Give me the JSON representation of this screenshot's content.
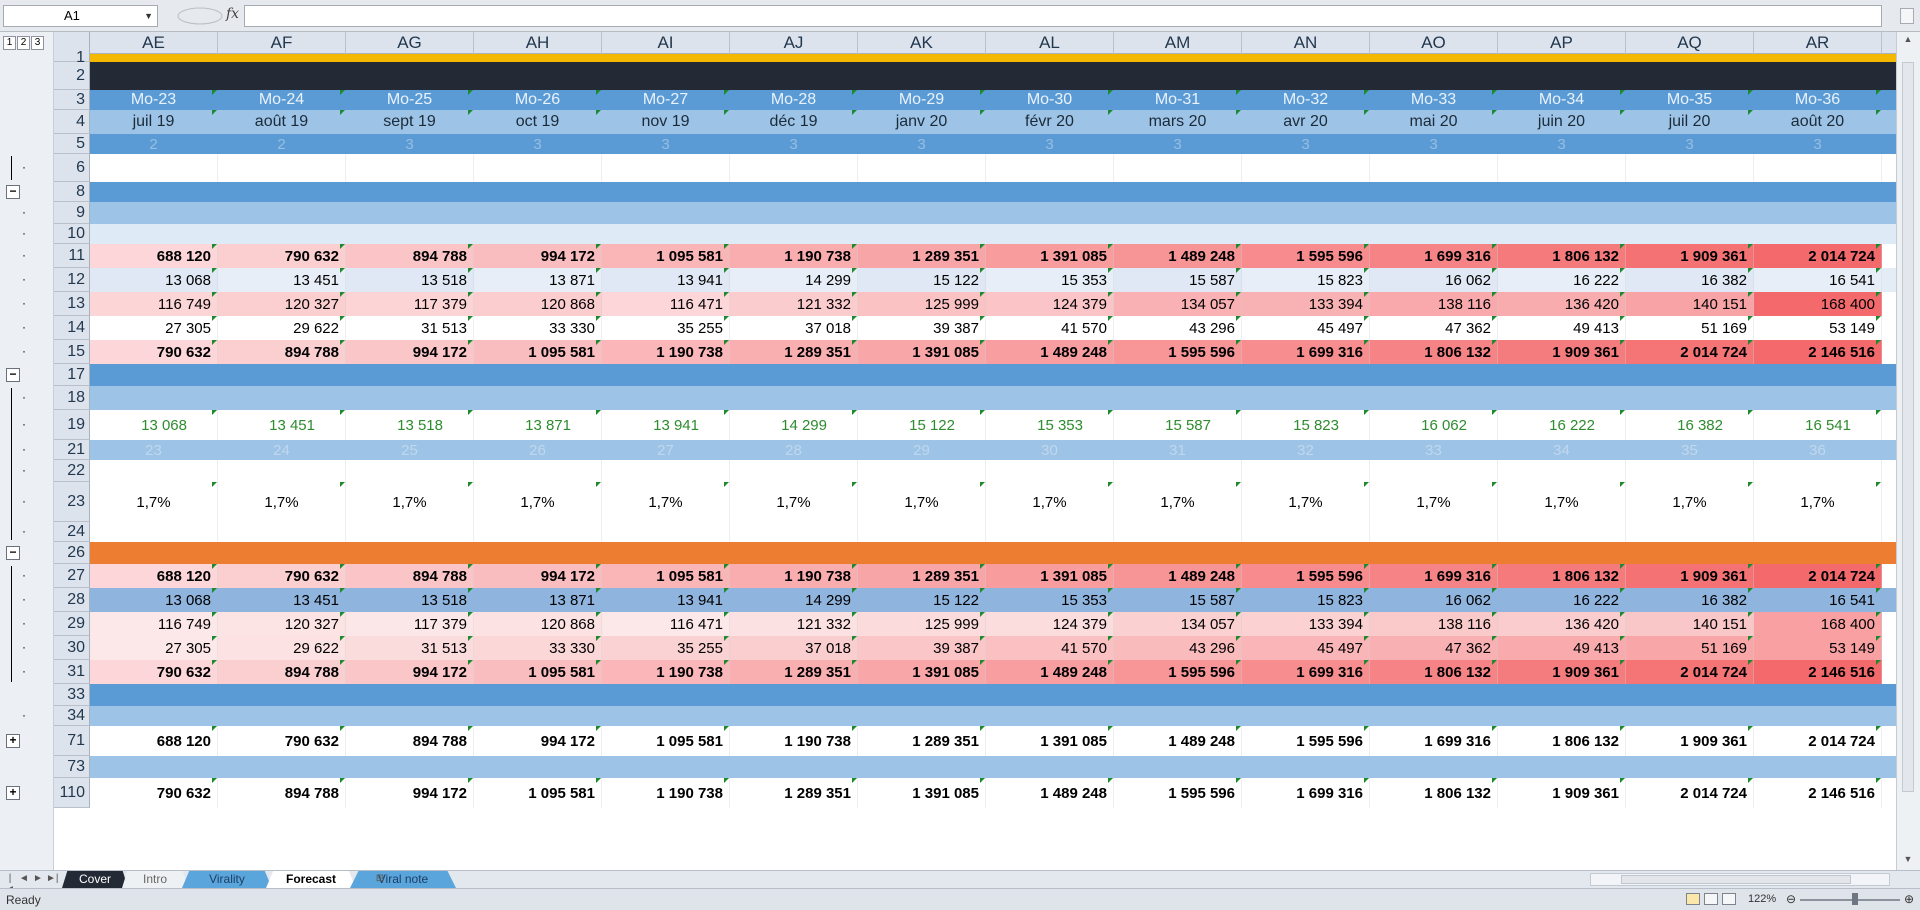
{
  "formula_bar": {
    "name_box": "A1",
    "formula": ""
  },
  "outline_levels": [
    "1",
    "2",
    "3"
  ],
  "columns": [
    "AE",
    "AF",
    "AG",
    "AH",
    "AI",
    "AJ",
    "AK",
    "AL",
    "AM",
    "AN",
    "AO",
    "AP",
    "AQ",
    "AR"
  ],
  "rows": [
    {
      "num": "1",
      "kind": "gold"
    },
    {
      "num": "2",
      "kind": "dark"
    },
    {
      "num": "3",
      "kind": "hdr",
      "cells": [
        "Mo-23",
        "Mo-24",
        "Mo-25",
        "Mo-26",
        "Mo-27",
        "Mo-28",
        "Mo-29",
        "Mo-30",
        "Mo-31",
        "Mo-32",
        "Mo-33",
        "Mo-34",
        "Mo-35",
        "Mo-36"
      ]
    },
    {
      "num": "4",
      "kind": "month",
      "cells": [
        "juil 19",
        "août 19",
        "sept 19",
        "oct 19",
        "nov 19",
        "déc 19",
        "janv 20",
        "févr 20",
        "mars 20",
        "avr 20",
        "mai 20",
        "juin 20",
        "juil 20",
        "août 20"
      ]
    },
    {
      "num": "5",
      "kind": "quarter",
      "cells": [
        "2",
        "2",
        "3",
        "3",
        "3",
        "3",
        "3",
        "3",
        "3",
        "3",
        "3",
        "3",
        "3",
        "3"
      ]
    },
    {
      "num": "6",
      "kind": "white"
    },
    {
      "num": "8",
      "kind": "blue"
    },
    {
      "num": "9",
      "kind": "lightblue"
    },
    {
      "num": "10",
      "kind": "verylight"
    },
    {
      "num": "11",
      "kind": "heat",
      "bold": true,
      "cells": [
        "688 120",
        "790 632",
        "894 788",
        "994 172",
        "1 095 581",
        "1 190 738",
        "1 289 351",
        "1 391 085",
        "1 489 248",
        "1 595 596",
        "1 699 316",
        "1 806 132",
        "1 909 361",
        "2 014 724"
      ]
    },
    {
      "num": "12",
      "kind": "heatlight",
      "cells": [
        "13 068",
        "13 451",
        "13 518",
        "13 871",
        "13 941",
        "14 299",
        "15 122",
        "15 353",
        "15 587",
        "15 823",
        "16 062",
        "16 222",
        "16 382",
        "16 541"
      ]
    },
    {
      "num": "13",
      "kind": "heat",
      "cells": [
        "116 749",
        "120 327",
        "117 379",
        "120 868",
        "116 471",
        "121 332",
        "125 999",
        "124 379",
        "134 057",
        "133 394",
        "138 116",
        "136 420",
        "140 151",
        "168 400"
      ]
    },
    {
      "num": "14",
      "kind": "white",
      "cells": [
        "27 305",
        "29 622",
        "31 513",
        "33 330",
        "35 255",
        "37 018",
        "39 387",
        "41 570",
        "43 296",
        "45 497",
        "47 362",
        "49 413",
        "51 169",
        "53 149"
      ]
    },
    {
      "num": "15",
      "kind": "heat",
      "bold": true,
      "cells": [
        "790 632",
        "894 788",
        "994 172",
        "1 095 581",
        "1 190 738",
        "1 289 351",
        "1 391 085",
        "1 489 248",
        "1 595 596",
        "1 699 316",
        "1 806 132",
        "1 909 361",
        "2 014 724",
        "2 146 516"
      ]
    },
    {
      "num": "17",
      "kind": "blue"
    },
    {
      "num": "18",
      "kind": "lightblue"
    },
    {
      "num": "19",
      "kind": "green",
      "cells": [
        "13 068",
        "13 451",
        "13 518",
        "13 871",
        "13 941",
        "14 299",
        "15 122",
        "15 353",
        "15 587",
        "15 823",
        "16 062",
        "16 222",
        "16 382",
        "16 541"
      ]
    },
    {
      "num": "21",
      "kind": "lightblue",
      "cells": [
        "23",
        "24",
        "25",
        "26",
        "27",
        "28",
        "29",
        "30",
        "31",
        "32",
        "33",
        "34",
        "35",
        "36"
      ]
    },
    {
      "num": "22",
      "kind": "white"
    },
    {
      "num": "23",
      "kind": "pct",
      "cells": [
        "1,7%",
        "1,7%",
        "1,7%",
        "1,7%",
        "1,7%",
        "1,7%",
        "1,7%",
        "1,7%",
        "1,7%",
        "1,7%",
        "1,7%",
        "1,7%",
        "1,7%",
        "1,7%"
      ]
    },
    {
      "num": "24",
      "kind": "white"
    },
    {
      "num": "26",
      "kind": "orange"
    },
    {
      "num": "27",
      "kind": "heat",
      "bold": true,
      "cells": [
        "688 120",
        "790 632",
        "894 788",
        "994 172",
        "1 095 581",
        "1 190 738",
        "1 289 351",
        "1 391 085",
        "1 489 248",
        "1 595 596",
        "1 699 316",
        "1 806 132",
        "1 909 361",
        "2 014 724"
      ]
    },
    {
      "num": "28",
      "kind": "midblue",
      "cells": [
        "13 068",
        "13 451",
        "13 518",
        "13 871",
        "13 941",
        "14 299",
        "15 122",
        "15 353",
        "15 587",
        "15 823",
        "16 062",
        "16 222",
        "16 382",
        "16 541"
      ]
    },
    {
      "num": "29",
      "kind": "heatpale",
      "cells": [
        "116 749",
        "120 327",
        "117 379",
        "120 868",
        "116 471",
        "121 332",
        "125 999",
        "124 379",
        "134 057",
        "133 394",
        "138 116",
        "136 420",
        "140 151",
        "168 400"
      ]
    },
    {
      "num": "30",
      "kind": "heatpale",
      "cells": [
        "27 305",
        "29 622",
        "31 513",
        "33 330",
        "35 255",
        "37 018",
        "39 387",
        "41 570",
        "43 296",
        "45 497",
        "47 362",
        "49 413",
        "51 169",
        "53 149"
      ]
    },
    {
      "num": "31",
      "kind": "heat",
      "bold": true,
      "cells": [
        "790 632",
        "894 788",
        "994 172",
        "1 095 581",
        "1 190 738",
        "1 289 351",
        "1 391 085",
        "1 489 248",
        "1 595 596",
        "1 699 316",
        "1 806 132",
        "1 909 361",
        "2 014 724",
        "2 146 516"
      ]
    },
    {
      "num": "33",
      "kind": "blue"
    },
    {
      "num": "34",
      "kind": "lightblue"
    },
    {
      "num": "71",
      "kind": "plain",
      "bold": true,
      "cells": [
        "688 120",
        "790 632",
        "894 788",
        "994 172",
        "1 095 581",
        "1 190 738",
        "1 289 351",
        "1 391 085",
        "1 489 248",
        "1 595 596",
        "1 699 316",
        "1 806 132",
        "1 909 361",
        "2 014 724"
      ]
    },
    {
      "num": "73",
      "kind": "lightblue"
    },
    {
      "num": "110",
      "kind": "plain",
      "bold": true,
      "cells": [
        "790 632",
        "894 788",
        "994 172",
        "1 095 581",
        "1 190 738",
        "1 289 351",
        "1 391 085",
        "1 489 248",
        "1 595 596",
        "1 699 316",
        "1 806 132",
        "1 909 361",
        "2 014 724",
        "2 146 516"
      ]
    }
  ],
  "sheet_tabs": [
    {
      "label": "Cover",
      "style": "dark"
    },
    {
      "label": "Intro",
      "style": "plain"
    },
    {
      "label": "Virality",
      "style": "blue"
    },
    {
      "label": "Forecast",
      "style": "active"
    },
    {
      "label": "Viral note",
      "style": "blue"
    }
  ],
  "status": {
    "text": "Ready",
    "zoom": "122%"
  },
  "colors": {
    "dark": "#232a35",
    "gold": "#f5b800",
    "blue": "#5b9bd5",
    "lightblue": "#9dc3e6",
    "verylight": "#deebf7",
    "orange": "#ed7d31",
    "green_text": "#2e8b2e",
    "heat_max": "#f4696b"
  }
}
